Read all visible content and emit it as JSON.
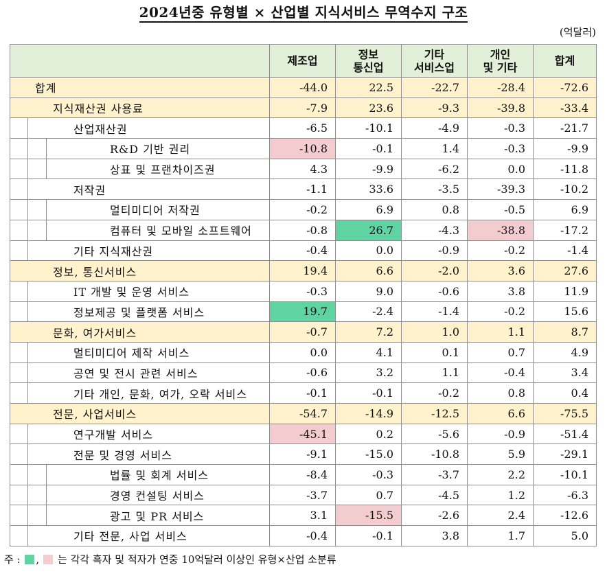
{
  "title": "2024년중 유형별 × 산업별 지식서비스 무역수지 구조",
  "unit": "(억달러)",
  "columns": [
    "제조업",
    "정보\n통신업",
    "기타\n서비스업",
    "개인\n및 기타",
    "합계"
  ],
  "rows": [
    {
      "label": "합계",
      "level": 0,
      "values": [
        "-44.0",
        "22.5",
        "-22.7",
        "-28.4",
        "-72.6"
      ],
      "hl": [
        null,
        null,
        null,
        null,
        null
      ],
      "style": "yellow"
    },
    {
      "label": "지식재산권 사용료",
      "level": 1,
      "values": [
        "-7.9",
        "23.6",
        "-9.3",
        "-39.8",
        "-33.4"
      ],
      "hl": [
        null,
        null,
        null,
        null,
        null
      ],
      "style": "yellow"
    },
    {
      "label": "산업재산권",
      "level": 2,
      "values": [
        "-6.5",
        "-10.1",
        "-4.9",
        "-0.3",
        "-21.7"
      ],
      "hl": [
        null,
        null,
        null,
        null,
        null
      ],
      "style": ""
    },
    {
      "label": "R&D 기반 권리",
      "level": 3,
      "values": [
        "-10.8",
        "-0.1",
        "1.4",
        "-0.3",
        "-9.9"
      ],
      "hl": [
        "pink",
        null,
        null,
        null,
        null
      ],
      "style": ""
    },
    {
      "label": "상표 및 프랜차이즈권",
      "level": 3,
      "values": [
        "4.3",
        "-9.9",
        "-6.2",
        "0.0",
        "-11.8"
      ],
      "hl": [
        null,
        null,
        null,
        null,
        null
      ],
      "style": ""
    },
    {
      "label": "저작권",
      "level": 2,
      "values": [
        "-1.1",
        "33.6",
        "-3.5",
        "-39.3",
        "-10.2"
      ],
      "hl": [
        null,
        null,
        null,
        null,
        null
      ],
      "style": ""
    },
    {
      "label": "멀티미디어 저작권",
      "level": 3,
      "values": [
        "-0.2",
        "6.9",
        "0.8",
        "-0.5",
        "6.9"
      ],
      "hl": [
        null,
        null,
        null,
        null,
        null
      ],
      "style": ""
    },
    {
      "label": "컴퓨터 및 모바일 소프트웨어",
      "level": 3,
      "values": [
        "-0.8",
        "26.7",
        "-4.3",
        "-38.8",
        "-17.2"
      ],
      "hl": [
        null,
        "green",
        null,
        "pink",
        null
      ],
      "style": ""
    },
    {
      "label": "기타 지식재산권",
      "level": 2,
      "values": [
        "-0.4",
        "0.0",
        "-0.9",
        "-0.2",
        "-1.4"
      ],
      "hl": [
        null,
        null,
        null,
        null,
        null
      ],
      "style": ""
    },
    {
      "label": "정보, 통신서비스",
      "level": 1,
      "values": [
        "19.4",
        "6.6",
        "-2.0",
        "3.6",
        "27.6"
      ],
      "hl": [
        null,
        null,
        null,
        null,
        null
      ],
      "style": "yellow"
    },
    {
      "label": "IT 개발 및 운영 서비스",
      "level": 2,
      "values": [
        "-0.3",
        "9.0",
        "-0.6",
        "3.8",
        "11.9"
      ],
      "hl": [
        null,
        null,
        null,
        null,
        null
      ],
      "style": ""
    },
    {
      "label": "정보제공 및 플랫폼 서비스",
      "level": 2,
      "values": [
        "19.7",
        "-2.4",
        "-1.4",
        "-0.2",
        "15.6"
      ],
      "hl": [
        "green",
        null,
        null,
        null,
        null
      ],
      "style": ""
    },
    {
      "label": "문화, 여가서비스",
      "level": 1,
      "values": [
        "-0.7",
        "7.2",
        "1.0",
        "1.1",
        "8.7"
      ],
      "hl": [
        null,
        null,
        null,
        null,
        null
      ],
      "style": "yellow"
    },
    {
      "label": "멀티미디어 제작 서비스",
      "level": 2,
      "values": [
        "0.0",
        "4.1",
        "0.1",
        "0.7",
        "4.9"
      ],
      "hl": [
        null,
        null,
        null,
        null,
        null
      ],
      "style": ""
    },
    {
      "label": "공연 및 전시 관련 서비스",
      "level": 2,
      "values": [
        "-0.6",
        "3.2",
        "1.1",
        "-0.4",
        "3.4"
      ],
      "hl": [
        null,
        null,
        null,
        null,
        null
      ],
      "style": ""
    },
    {
      "label": "기타 개인, 문화, 여가, 오락 서비스",
      "level": 2,
      "values": [
        "-0.1",
        "-0.1",
        "-0.2",
        "0.8",
        "0.4"
      ],
      "hl": [
        null,
        null,
        null,
        null,
        null
      ],
      "style": ""
    },
    {
      "label": "전문, 사업서비스",
      "level": 1,
      "values": [
        "-54.7",
        "-14.9",
        "-12.5",
        "6.6",
        "-75.5"
      ],
      "hl": [
        null,
        null,
        null,
        null,
        null
      ],
      "style": "yellow"
    },
    {
      "label": "연구개발 서비스",
      "level": 2,
      "values": [
        "-45.1",
        "0.2",
        "-5.6",
        "-0.9",
        "-51.4"
      ],
      "hl": [
        "pink",
        null,
        null,
        null,
        null
      ],
      "style": ""
    },
    {
      "label": "전문 및 경영 서비스",
      "level": 2,
      "values": [
        "-9.1",
        "-15.0",
        "-10.8",
        "5.9",
        "-29.1"
      ],
      "hl": [
        null,
        null,
        null,
        null,
        null
      ],
      "style": ""
    },
    {
      "label": "법률 및 회계 서비스",
      "level": 3,
      "values": [
        "-8.4",
        "-0.3",
        "-3.7",
        "2.2",
        "-10.1"
      ],
      "hl": [
        null,
        null,
        null,
        null,
        null
      ],
      "style": ""
    },
    {
      "label": "경영 컨설팅 서비스",
      "level": 3,
      "values": [
        "-3.7",
        "0.7",
        "-4.5",
        "1.2",
        "-6.3"
      ],
      "hl": [
        null,
        null,
        null,
        null,
        null
      ],
      "style": ""
    },
    {
      "label": "광고 및 PR 서비스",
      "level": 3,
      "values": [
        "3.1",
        "-15.5",
        "-2.6",
        "2.4",
        "-12.6"
      ],
      "hl": [
        null,
        "pink",
        null,
        null,
        null
      ],
      "style": ""
    },
    {
      "label": "기타 전문, 사업 서비스",
      "level": 2,
      "values": [
        "-0.4",
        "-0.1",
        "3.8",
        "1.7",
        "5.0"
      ],
      "hl": [
        null,
        null,
        null,
        null,
        null
      ],
      "style": ""
    }
  ],
  "note": {
    "prefix": "주 : ",
    "sep": ",",
    "text": " 는 각각 흑자 및 적자가 연중 10억달러 이상인 유형×산업 소분류"
  },
  "colors": {
    "header_bg": "#e2f0d9",
    "yellow_row": "#fff2cc",
    "green": "#5fd3a2",
    "pink": "#f3cccf"
  }
}
